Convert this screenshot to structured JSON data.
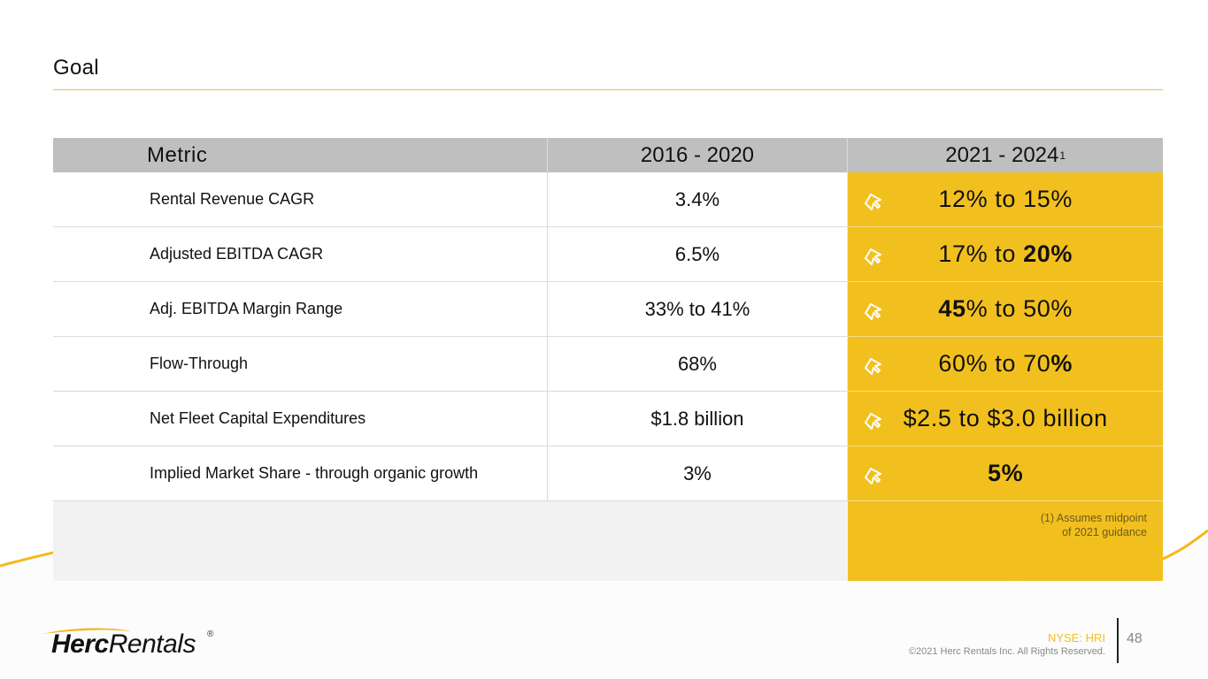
{
  "slide": {
    "title": "Goal",
    "brand_color": "#F2C01E"
  },
  "table": {
    "headers": {
      "metric": "Metric",
      "historical": "2016 - 2020",
      "target": "2021 - 2024",
      "target_footnote_marker": "1"
    },
    "rows": [
      {
        "metric": "Rental Revenue CAGR",
        "historical": "3.4%",
        "target_parts": [
          {
            "text": "12% to 15%",
            "bold": false
          }
        ],
        "icon": "arrow-up-right-icon"
      },
      {
        "metric": "Adjusted EBITDA CAGR",
        "historical": "6.5%",
        "target_parts": [
          {
            "text": "17% to ",
            "bold": false
          },
          {
            "text": "20%",
            "bold": true
          }
        ],
        "icon": "arrow-up-right-icon"
      },
      {
        "metric": "Adj. EBITDA Margin Range",
        "historical": "33% to 41%",
        "target_parts": [
          {
            "text": "45",
            "bold": true
          },
          {
            "text": "% to 50%",
            "bold": false
          }
        ],
        "icon": "arrow-up-right-icon"
      },
      {
        "metric": "Flow-Through",
        "historical": "68%",
        "target_parts": [
          {
            "text": "60% to 70",
            "bold": false
          },
          {
            "text": "%",
            "bold": true
          }
        ],
        "icon": "arrow-up-right-icon"
      },
      {
        "metric": "Net Fleet Capital Expenditures",
        "historical": "$1.8 billion",
        "target_parts": [
          {
            "text": "$2.5 to $3.0 billion",
            "bold": false
          }
        ],
        "icon": "arrow-up-right-icon"
      },
      {
        "metric": "Implied Market Share  -  through organic growth",
        "historical": "3%",
        "target_parts": [
          {
            "text": "5%",
            "bold": true
          }
        ],
        "icon": "arrow-up-right-icon"
      }
    ],
    "footnote_line1": "(1)   Assumes midpoint",
    "footnote_line2": "of 2021 guidance"
  },
  "footer": {
    "logo_bold": "Herc",
    "logo_regular": "Rentals",
    "logo_registered": "®",
    "ticker": "NYSE: HRI",
    "copyright": "©2021 Herc Rentals Inc.  All Rights Reserved.",
    "page_number": "48"
  }
}
